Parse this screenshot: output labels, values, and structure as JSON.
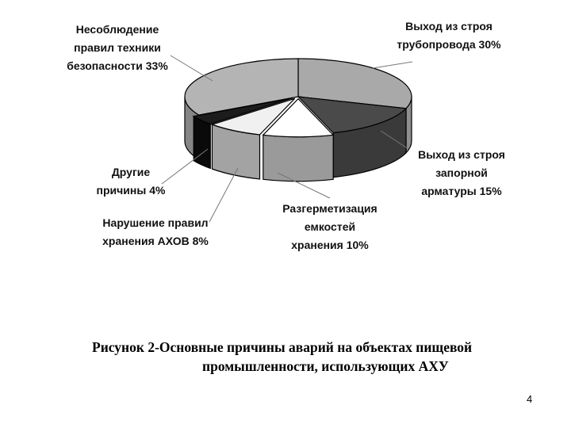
{
  "chart_data": {
    "type": "pie",
    "style": "3d-exploded",
    "title": "",
    "slices": [
      {
        "label_lines": [
          "Выход из строя",
          "трубопровода 30%"
        ],
        "value": 30,
        "color": "#a9a9a9",
        "side": "#8f8f8f"
      },
      {
        "label_lines": [
          "Выход из строя",
          "запорной",
          "арматуры 15%"
        ],
        "value": 15,
        "color": "#4a4a4a",
        "side": "#3a3a3a"
      },
      {
        "label_lines": [
          "Разгерметизация",
          "емкостей",
          "хранения 10%"
        ],
        "value": 10,
        "color": "#ffffff",
        "side": "#9a9a9a"
      },
      {
        "label_lines": [
          "Нарушение правил",
          "хранения АХОВ 8%"
        ],
        "value": 8,
        "color": "#f0f0f0",
        "side": "#a3a3a3"
      },
      {
        "label_lines": [
          "Другие",
          "причины 4%"
        ],
        "value": 4,
        "color": "#1c1c1c",
        "side": "#0a0a0a"
      },
      {
        "label_lines": [
          "Несоблюдение",
          "правил техники",
          "безопасности 33%"
        ],
        "value": 33,
        "color": "#b4b4b4",
        "side": "#858585"
      }
    ]
  },
  "caption": {
    "line1": "Рисунок 2-Основные причины аварий на объектах пищевой",
    "line2": "промышленности, использующих АХУ"
  },
  "page_number": "4"
}
